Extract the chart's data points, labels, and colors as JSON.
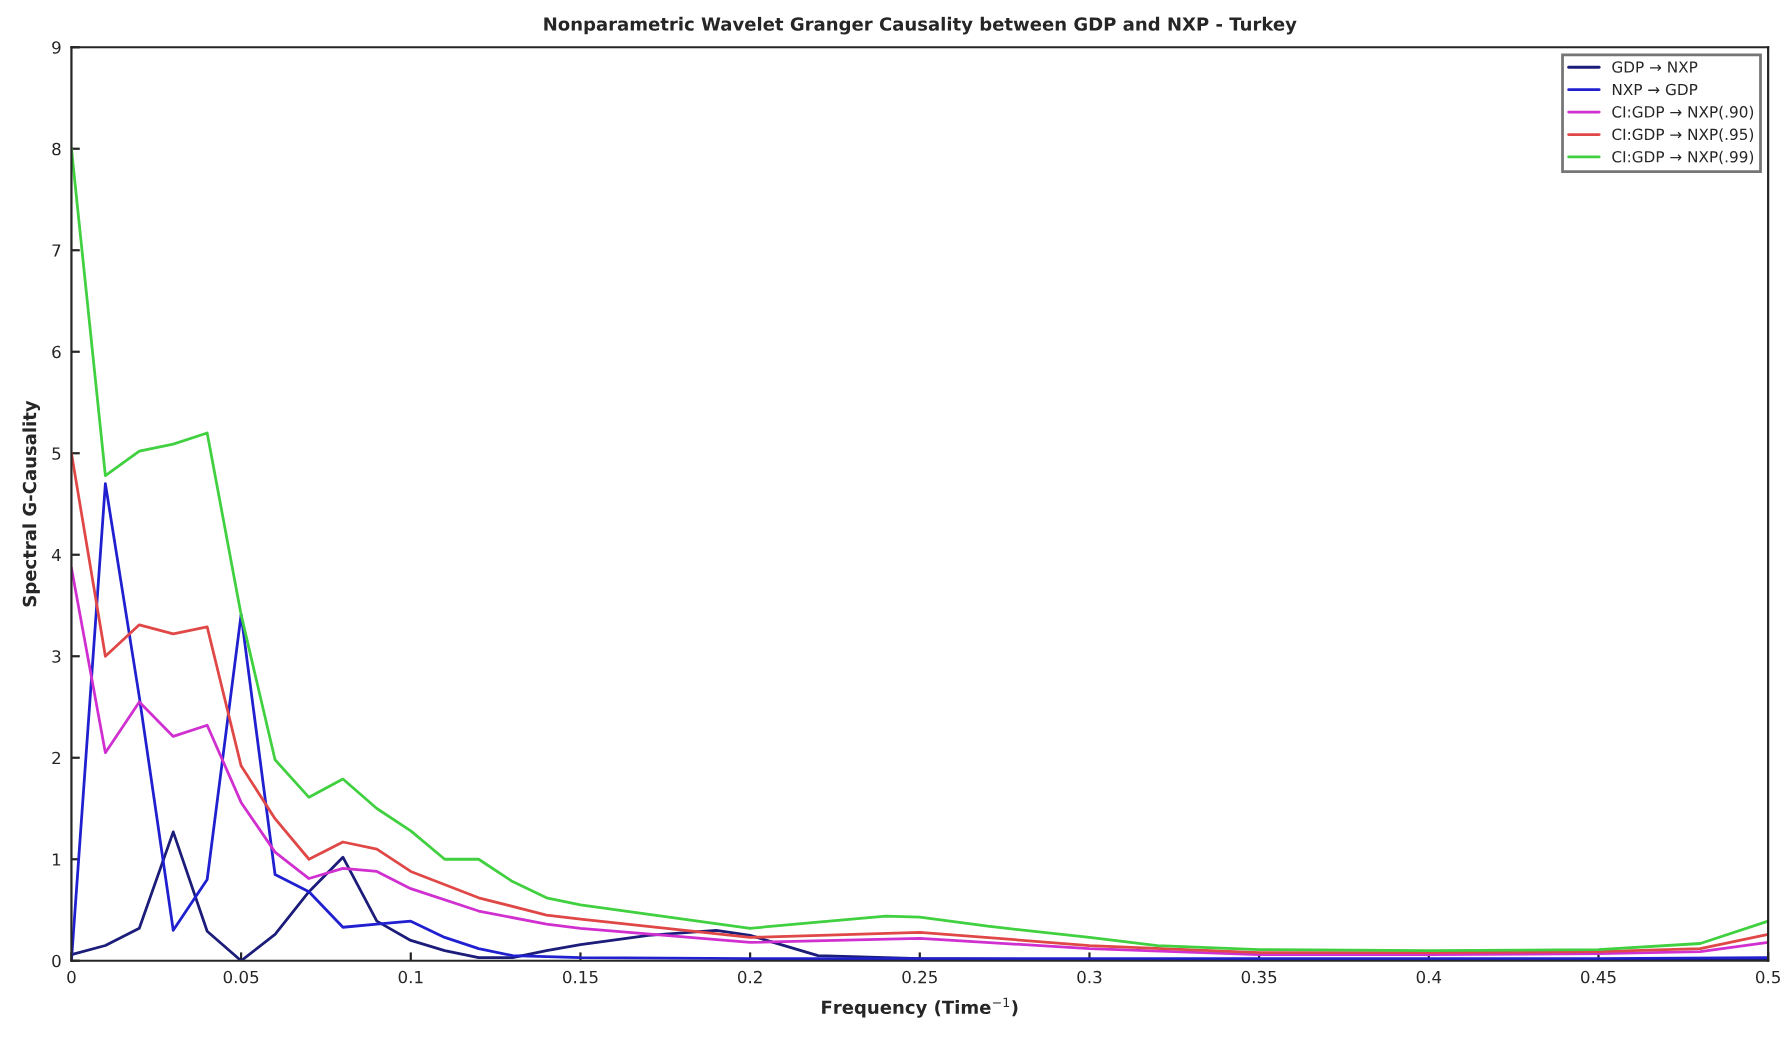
{
  "chart_data": {
    "type": "line",
    "title": "Nonparametric Wavelet Granger Causality between GDP and NXP - Turkey",
    "xlabel": "Frequency (Time$^{−1}$)",
    "ylabel": "Spectral G-Causality",
    "xlim": [
      0,
      0.5
    ],
    "ylim": [
      0,
      9
    ],
    "xticks": [
      0,
      0.05,
      0.1,
      0.15,
      0.2,
      0.25,
      0.3,
      0.35,
      0.4,
      0.45,
      0.5
    ],
    "yticks": [
      0,
      1,
      2,
      3,
      4,
      5,
      6,
      7,
      8,
      9
    ],
    "grid": false,
    "legend": "top right",
    "line_style": "solid",
    "marker": "none",
    "series": [
      {
        "name": "GDP → NXP",
        "color": "#1c1c7a",
        "x": [
          0,
          0.01,
          0.02,
          0.03,
          0.04,
          0.05,
          0.06,
          0.07,
          0.08,
          0.09,
          0.1,
          0.11,
          0.12,
          0.13,
          0.14,
          0.15,
          0.17,
          0.19,
          0.2,
          0.22,
          0.25,
          0.3,
          0.35,
          0.4,
          0.45,
          0.5
        ],
        "values": [
          0.06,
          0.15,
          0.32,
          1.27,
          0.29,
          0.0,
          0.26,
          0.68,
          1.02,
          0.39,
          0.2,
          0.1,
          0.03,
          0.03,
          0.1,
          0.16,
          0.25,
          0.3,
          0.25,
          0.05,
          0.02,
          0.01,
          0.01,
          0.01,
          0.01,
          0.02
        ]
      },
      {
        "name": "NXP → GDP",
        "color": "#2020d0",
        "x": [
          0,
          0.01,
          0.02,
          0.03,
          0.04,
          0.05,
          0.06,
          0.07,
          0.08,
          0.09,
          0.1,
          0.11,
          0.12,
          0.13,
          0.15,
          0.2,
          0.25,
          0.3,
          0.35,
          0.4,
          0.45,
          0.5
        ],
        "values": [
          0.0,
          4.7,
          2.6,
          0.3,
          0.8,
          3.41,
          0.85,
          0.68,
          0.33,
          0.36,
          0.39,
          0.23,
          0.12,
          0.05,
          0.03,
          0.02,
          0.02,
          0.02,
          0.02,
          0.02,
          0.02,
          0.03
        ]
      },
      {
        "name": "CI:GDP → NXP(.90)",
        "color": "#d030d0",
        "x": [
          0,
          0.01,
          0.02,
          0.03,
          0.04,
          0.05,
          0.06,
          0.07,
          0.08,
          0.09,
          0.1,
          0.12,
          0.14,
          0.15,
          0.2,
          0.25,
          0.3,
          0.35,
          0.4,
          0.45,
          0.48,
          0.5
        ],
        "values": [
          3.87,
          2.05,
          2.55,
          2.21,
          2.32,
          1.56,
          1.07,
          0.81,
          0.91,
          0.88,
          0.71,
          0.49,
          0.36,
          0.32,
          0.18,
          0.22,
          0.12,
          0.06,
          0.06,
          0.07,
          0.09,
          0.18
        ]
      },
      {
        "name": "CI:GDP → NXP(.95)",
        "color": "#e04848",
        "x": [
          0,
          0.01,
          0.02,
          0.03,
          0.04,
          0.05,
          0.06,
          0.07,
          0.08,
          0.09,
          0.1,
          0.12,
          0.14,
          0.15,
          0.2,
          0.25,
          0.3,
          0.35,
          0.4,
          0.45,
          0.48,
          0.5
        ],
        "values": [
          5.0,
          3.0,
          3.31,
          3.22,
          3.29,
          1.92,
          1.4,
          1.0,
          1.17,
          1.1,
          0.88,
          0.62,
          0.45,
          0.41,
          0.23,
          0.28,
          0.15,
          0.08,
          0.08,
          0.09,
          0.12,
          0.26
        ]
      },
      {
        "name": "CI:GDP → NXP(.99)",
        "color": "#40d040",
        "x": [
          0,
          0.01,
          0.02,
          0.03,
          0.04,
          0.05,
          0.06,
          0.07,
          0.08,
          0.09,
          0.1,
          0.11,
          0.12,
          0.13,
          0.14,
          0.15,
          0.2,
          0.22,
          0.24,
          0.25,
          0.27,
          0.3,
          0.32,
          0.35,
          0.4,
          0.45,
          0.48,
          0.5
        ],
        "values": [
          8.0,
          4.78,
          5.02,
          5.09,
          5.2,
          3.41,
          1.98,
          1.61,
          1.79,
          1.5,
          1.28,
          1.0,
          1.0,
          0.78,
          0.62,
          0.55,
          0.32,
          0.38,
          0.44,
          0.43,
          0.34,
          0.23,
          0.15,
          0.11,
          0.1,
          0.11,
          0.17,
          0.39
        ]
      }
    ]
  }
}
